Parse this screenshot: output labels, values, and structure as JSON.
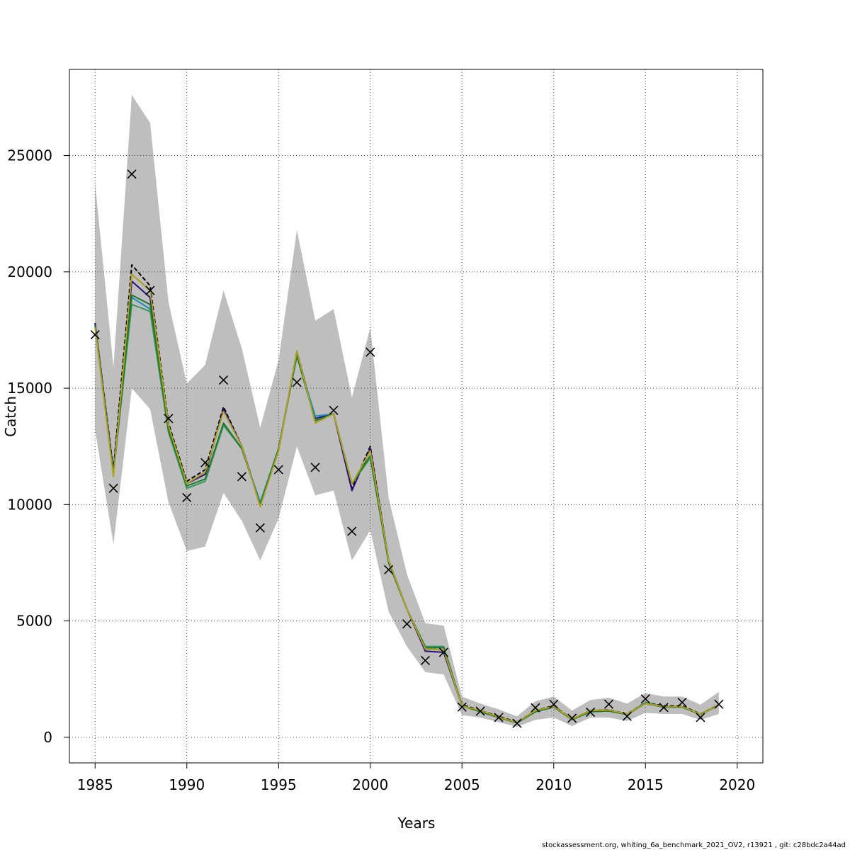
{
  "chart_data": {
    "type": "line",
    "title": "",
    "xlabel": "Years",
    "ylabel": "Catch",
    "xlim": [
      1983.6,
      2021.4
    ],
    "ylim": [
      -1100,
      28700
    ],
    "xticks": [
      1985,
      1990,
      1995,
      2000,
      2005,
      2010,
      2015,
      2020
    ],
    "yticks": [
      0,
      5000,
      10000,
      15000,
      20000,
      25000
    ],
    "grid": true,
    "legend": "none",
    "years": [
      1985,
      1986,
      1987,
      1988,
      1989,
      1990,
      1991,
      1992,
      1993,
      1994,
      1995,
      1996,
      1997,
      1998,
      1999,
      2000,
      2001,
      2002,
      2003,
      2004,
      2005,
      2006,
      2007,
      2008,
      2009,
      2010,
      2011,
      2012,
      2013,
      2014,
      2015,
      2016,
      2017,
      2018,
      2019
    ],
    "confidence_band": {
      "color": "#bebebe",
      "lower": [
        13200,
        8300,
        15000,
        14100,
        10100,
        8000,
        8200,
        10500,
        9300,
        7600,
        9400,
        12500,
        10400,
        10600,
        7600,
        8900,
        5400,
        3900,
        2800,
        2700,
        950,
        850,
        650,
        450,
        750,
        850,
        480,
        850,
        850,
        700,
        1050,
        1000,
        1000,
        750,
        1000
      ],
      "upper": [
        23800,
        15900,
        27600,
        26400,
        18700,
        15200,
        16000,
        19200,
        16700,
        13300,
        16200,
        21800,
        17900,
        18400,
        14600,
        17600,
        10300,
        7000,
        4900,
        4800,
        1750,
        1450,
        1200,
        900,
        1550,
        1750,
        1150,
        1600,
        1700,
        1450,
        1900,
        1750,
        1750,
        1400,
        1950
      ]
    },
    "series": [
      {
        "color": "#000000",
        "dashed": true,
        "values": [
          17800,
          11500,
          20300,
          19400,
          13500,
          11000,
          11500,
          14200,
          12500,
          10000,
          12300,
          16600,
          13600,
          13900,
          10700,
          12500,
          7600,
          5500,
          3800,
          3750,
          1400,
          1150,
          900,
          650,
          1150,
          1350,
          780,
          1150,
          1180,
          1000,
          1500,
          1350,
          1350,
          1000,
          1400
        ]
      },
      {
        "color": "#2b0f7a",
        "dashed": false,
        "values": [
          17800,
          11400,
          19600,
          18900,
          13400,
          10900,
          11300,
          14100,
          12500,
          10000,
          12400,
          16500,
          13700,
          13900,
          10600,
          12400,
          7600,
          5500,
          3700,
          3650,
          1350,
          1100,
          850,
          630,
          1100,
          1300,
          760,
          1120,
          1150,
          980,
          1450,
          1300,
          1300,
          980,
          1380
        ]
      },
      {
        "color": "#1a8fbf",
        "dashed": false,
        "values": [
          17700,
          11300,
          18900,
          18400,
          13200,
          10700,
          11000,
          13500,
          12400,
          10100,
          12400,
          16400,
          13800,
          13900,
          10900,
          12100,
          7500,
          5500,
          3900,
          3900,
          1350,
          1100,
          850,
          620,
          1100,
          1300,
          760,
          1100,
          1130,
          980,
          1500,
          1300,
          1300,
          980,
          1380
        ]
      },
      {
        "color": "#3a9a5a",
        "dashed": false,
        "values": [
          17700,
          11300,
          18600,
          18300,
          13100,
          10700,
          11000,
          13400,
          12400,
          10000,
          12400,
          16400,
          13600,
          13900,
          10900,
          12000,
          7500,
          5500,
          3900,
          3900,
          1350,
          1100,
          850,
          620,
          1100,
          1300,
          760,
          1100,
          1130,
          980,
          1500,
          1300,
          1300,
          980,
          1380
        ]
      },
      {
        "color": "#1f7a2e",
        "dashed": false,
        "values": [
          17700,
          11300,
          19000,
          18600,
          13200,
          10800,
          11100,
          13500,
          12400,
          10000,
          12400,
          16400,
          13600,
          13900,
          10900,
          12100,
          7500,
          5500,
          3850,
          3850,
          1350,
          1100,
          850,
          620,
          1100,
          1300,
          760,
          1100,
          1130,
          980,
          1450,
          1300,
          1300,
          980,
          1380
        ]
      },
      {
        "color": "#b0a020",
        "dashed": false,
        "values": [
          17600,
          11200,
          19900,
          19200,
          13400,
          10900,
          11400,
          14000,
          12500,
          9900,
          12300,
          16600,
          13500,
          13900,
          10900,
          12300,
          7600,
          5500,
          3800,
          3750,
          1350,
          1150,
          870,
          640,
          1150,
          1320,
          780,
          1150,
          1170,
          1000,
          1450,
          1320,
          1320,
          990,
          1390
        ]
      }
    ],
    "observed": {
      "marker": "x",
      "values": [
        17300,
        10700,
        24200,
        19200,
        13700,
        10300,
        11800,
        15350,
        11200,
        9000,
        11500,
        15250,
        11600,
        14050,
        8850,
        16550,
        7200,
        4870,
        3300,
        3650,
        1300,
        1120,
        850,
        600,
        1270,
        1420,
        820,
        1080,
        1420,
        900,
        1650,
        1280,
        1500,
        850,
        1420
      ]
    }
  },
  "footer": {
    "text": "stockassessment.org, whiting_6a_benchmark_2021_OV2, r13921 , git: c28bdc2a44ad"
  }
}
